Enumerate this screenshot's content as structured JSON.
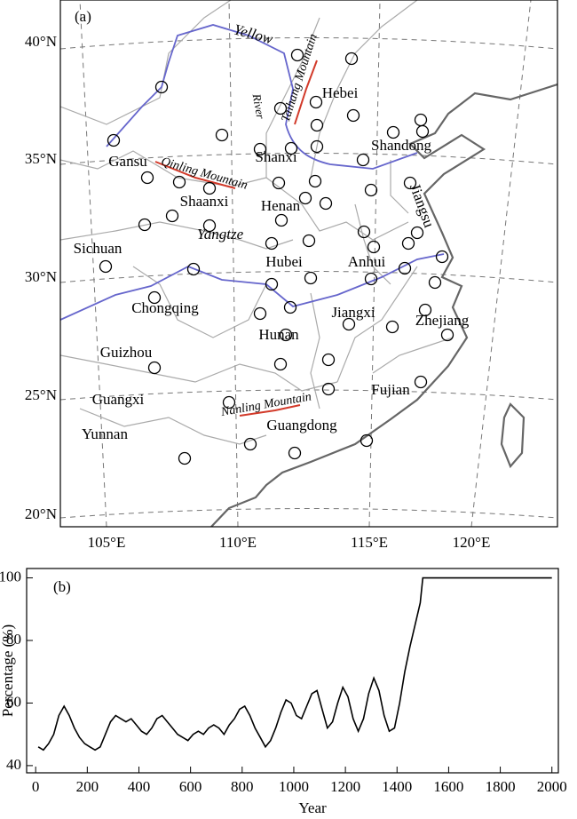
{
  "map": {
    "panel_label": "(a)",
    "lat_labels": [
      "40°N",
      "35°N",
      "30°N",
      "25°N",
      "20°N"
    ],
    "lon_labels": [
      "105°E",
      "110°E",
      "115°E",
      "120°E"
    ],
    "provinces": [
      "Hebei",
      "Shandong",
      "Shanxi",
      "Gansu",
      "Shaanxi",
      "Henan",
      "Jiangsu",
      "Sichuan",
      "Hubei",
      "Anhui",
      "Chongqing",
      "Jiangxi",
      "Zhejiang",
      "Hunan",
      "Guizhou",
      "Fujian",
      "Guangxi",
      "Guangdong",
      "Yunnan"
    ],
    "features": [
      "Yellow",
      "River",
      "Yangtze",
      "Taihang Mountain",
      "Qinling Mountain",
      "Nanling Mountain"
    ]
  },
  "chart_data": {
    "type": "line",
    "panel_label": "(b)",
    "x_label": "Year",
    "y_label": "Percentage (%)",
    "color": "#000000",
    "x": [
      10,
      30,
      50,
      70,
      90,
      110,
      130,
      150,
      170,
      190,
      210,
      230,
      250,
      270,
      290,
      310,
      330,
      350,
      370,
      390,
      410,
      430,
      450,
      470,
      490,
      510,
      530,
      550,
      570,
      590,
      610,
      630,
      650,
      670,
      690,
      710,
      730,
      750,
      770,
      790,
      810,
      830,
      850,
      870,
      890,
      910,
      930,
      950,
      970,
      990,
      1010,
      1030,
      1050,
      1070,
      1090,
      1110,
      1130,
      1150,
      1170,
      1190,
      1210,
      1230,
      1250,
      1270,
      1290,
      1310,
      1330,
      1350,
      1370,
      1390,
      1410,
      1430,
      1450,
      1470,
      1490,
      1500,
      1550,
      2000
    ],
    "values": [
      46,
      45,
      47,
      50,
      56,
      59,
      56,
      52,
      49,
      47,
      46,
      45,
      46,
      50,
      54,
      56,
      55,
      54,
      55,
      53,
      51,
      50,
      52,
      55,
      56,
      54,
      52,
      50,
      49,
      48,
      50,
      51,
      50,
      52,
      53,
      52,
      50,
      53,
      55,
      58,
      59,
      56,
      52,
      49,
      46,
      48,
      52,
      57,
      61,
      60,
      56,
      55,
      59,
      63,
      64,
      58,
      52,
      54,
      60,
      65,
      62,
      55,
      51,
      55,
      63,
      68,
      64,
      56,
      51,
      52,
      60,
      70,
      78,
      85,
      92,
      100,
      100,
      100
    ],
    "xlim": [
      -35,
      2025
    ],
    "ylim": [
      37.7,
      103
    ],
    "xticks": [
      0,
      200,
      400,
      600,
      800,
      1000,
      1200,
      1400,
      1600,
      1800,
      2000
    ],
    "yticks": [
      40,
      60,
      80,
      100
    ]
  }
}
